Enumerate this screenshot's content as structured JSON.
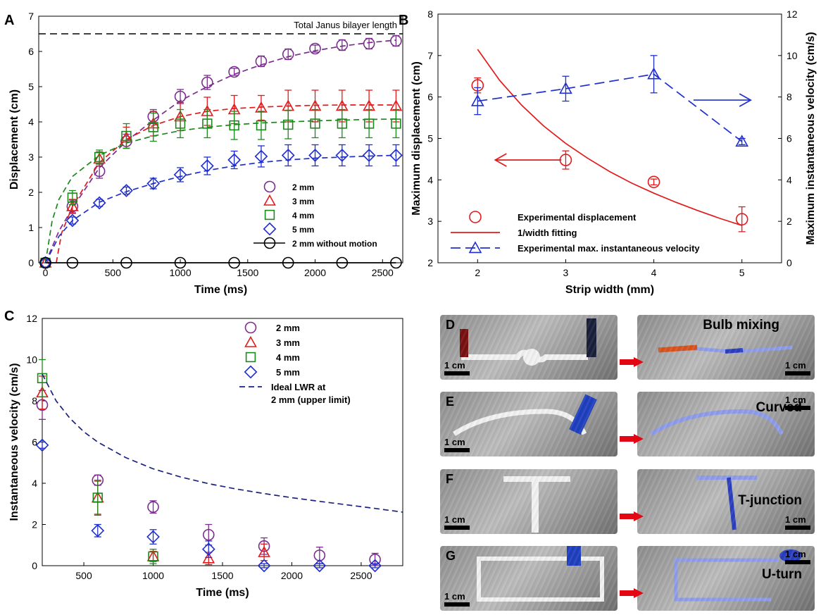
{
  "figure": {
    "panel_labels": {
      "a": "A",
      "b": "B",
      "c": "C"
    }
  },
  "chart_data": [
    {
      "type": "line",
      "panel": "A",
      "xlabel": "Time (ms)",
      "ylabel": "Displacement (cm)",
      "xlim": [
        -50,
        2650
      ],
      "ylim": [
        0,
        7
      ],
      "xticks": [
        0,
        500,
        1000,
        1500,
        2000,
        2500
      ],
      "yticks": [
        0,
        1,
        2,
        3,
        4,
        5,
        6,
        7
      ],
      "legend_position": "lower-right",
      "reference_line": {
        "y": 6.5,
        "label": "Total Janus bilayer length"
      },
      "series": [
        {
          "name": "2 mm",
          "marker": "circle",
          "color": "#7b2d8e",
          "fit": "dashed",
          "x": [
            0,
            200,
            400,
            600,
            800,
            1000,
            1200,
            1400,
            1600,
            1800,
            2000,
            2200,
            2400,
            2600
          ],
          "y": [
            0,
            1.6,
            2.6,
            3.45,
            4.15,
            4.72,
            5.12,
            5.42,
            5.72,
            5.92,
            6.08,
            6.18,
            6.22,
            6.3
          ],
          "err": [
            0,
            0.18,
            0.2,
            0.2,
            0.2,
            0.2,
            0.2,
            0.1,
            0.15,
            0.15,
            0.1,
            0.15,
            0.15,
            0.15
          ],
          "fit_x": [
            0,
            100,
            200,
            400,
            600,
            800,
            1000,
            1200,
            1400,
            1600,
            1800,
            2000,
            2200,
            2400,
            2600
          ],
          "fit_y": [
            0,
            0.9,
            1.55,
            2.7,
            3.45,
            4.05,
            4.6,
            5.0,
            5.35,
            5.62,
            5.85,
            6.02,
            6.15,
            6.25,
            6.32
          ]
        },
        {
          "name": "3 mm",
          "marker": "triangle",
          "color": "#e31a1c",
          "fit": "dashed",
          "x": [
            0,
            200,
            400,
            600,
            800,
            1000,
            1200,
            1400,
            1600,
            1800,
            2000,
            2200,
            2400,
            2600
          ],
          "y": [
            0,
            1.6,
            2.95,
            3.55,
            3.95,
            4.15,
            4.3,
            4.35,
            4.4,
            4.45,
            4.45,
            4.45,
            4.45,
            4.45
          ],
          "err": [
            0,
            0.2,
            0.2,
            0.3,
            0.35,
            0.4,
            0.4,
            0.4,
            0.35,
            0.45,
            0.45,
            0.45,
            0.45,
            0.45
          ],
          "fit_x": [
            80,
            120,
            200,
            400,
            600,
            800,
            1000,
            1200,
            1400,
            1600,
            1800,
            2000,
            2200,
            2400,
            2600
          ],
          "fit_y": [
            0,
            0.85,
            1.6,
            2.85,
            3.5,
            3.9,
            4.15,
            4.3,
            4.38,
            4.42,
            4.45,
            4.47,
            4.48,
            4.48,
            4.48
          ]
        },
        {
          "name": "4 mm",
          "marker": "square",
          "color": "#1a8a1a",
          "fit": "dashed",
          "x": [
            0,
            200,
            400,
            600,
            800,
            1000,
            1200,
            1400,
            1600,
            1800,
            2000,
            2200,
            2400,
            2600
          ],
          "y": [
            0,
            1.85,
            3.0,
            3.6,
            3.85,
            3.95,
            3.95,
            3.9,
            3.9,
            3.92,
            3.95,
            3.95,
            3.95,
            3.95
          ],
          "err": [
            0,
            0.2,
            0.2,
            0.35,
            0.4,
            0.4,
            0.4,
            0.4,
            0.4,
            0.4,
            0.4,
            0.4,
            0.4,
            0.4
          ],
          "fit_x": [
            0,
            50,
            100,
            200,
            400,
            600,
            800,
            1000,
            1200,
            1400,
            1600,
            1800,
            2000,
            2200,
            2400,
            2600
          ],
          "fit_y": [
            0,
            1.2,
            1.8,
            2.45,
            3.05,
            3.4,
            3.6,
            3.75,
            3.85,
            3.92,
            3.97,
            4.0,
            4.03,
            4.05,
            4.07,
            4.08
          ]
        },
        {
          "name": "5 mm",
          "marker": "diamond",
          "color": "#1f2fcf",
          "fit": "dashed",
          "x": [
            0,
            200,
            400,
            600,
            800,
            1000,
            1200,
            1400,
            1600,
            1800,
            2000,
            2200,
            2400,
            2600
          ],
          "y": [
            0,
            1.2,
            1.7,
            2.05,
            2.25,
            2.5,
            2.75,
            2.92,
            3.02,
            3.05,
            3.05,
            3.05,
            3.05,
            3.05
          ],
          "err": [
            0,
            0.1,
            0.1,
            0.1,
            0.15,
            0.2,
            0.25,
            0.25,
            0.3,
            0.3,
            0.3,
            0.3,
            0.3,
            0.3
          ],
          "fit_x": [
            0,
            100,
            200,
            400,
            600,
            800,
            1000,
            1200,
            1400,
            1600,
            1800,
            2000,
            2200,
            2400,
            2600
          ],
          "fit_y": [
            0,
            0.75,
            1.2,
            1.72,
            2.02,
            2.25,
            2.45,
            2.62,
            2.75,
            2.85,
            2.92,
            2.97,
            3.0,
            3.03,
            3.05
          ]
        },
        {
          "name": "2 mm without motion",
          "marker": "circle",
          "color": "#000000",
          "fit": "solid",
          "x": [
            0,
            200,
            600,
            1000,
            1400,
            1800,
            2200,
            2600
          ],
          "y": [
            0,
            0,
            0,
            0,
            0,
            0,
            0,
            0
          ],
          "err": [
            0,
            0,
            0,
            0,
            0,
            0,
            0,
            0
          ],
          "fit_x": [
            0,
            2600
          ],
          "fit_y": [
            0,
            0
          ]
        }
      ]
    },
    {
      "type": "line",
      "panel": "B",
      "xlabel": "Strip width (mm)",
      "ylabel": "Maximum displacement (cm)",
      "ylabel_right": "Maximum instantaneous velocity (cm/s)",
      "xlim": [
        1.55,
        5.45
      ],
      "ylim": [
        2,
        8
      ],
      "ylim_right": [
        0,
        12
      ],
      "xticks": [
        2,
        3,
        4,
        5
      ],
      "yticks": [
        2,
        3,
        4,
        5,
        6,
        7,
        8
      ],
      "yticks_right": [
        0,
        2,
        4,
        6,
        8,
        10,
        12
      ],
      "legend_position": "bottom-left",
      "series": [
        {
          "name": "Experimental displacement",
          "marker": "circle",
          "color": "#e31a1c",
          "axis": "left",
          "x": [
            2,
            3,
            4,
            5
          ],
          "y": [
            6.28,
            4.48,
            3.95,
            3.05
          ],
          "err": [
            0.18,
            0.22,
            0.07,
            0.3
          ]
        },
        {
          "name": "1/width fitting",
          "line": "solid",
          "color": "#e31a1c",
          "axis": "left",
          "x": [
            2,
            2.25,
            2.5,
            2.75,
            3,
            3.25,
            3.5,
            3.75,
            4,
            4.25,
            4.5,
            4.75,
            5
          ],
          "y": [
            7.15,
            6.4,
            5.8,
            5.3,
            4.88,
            4.52,
            4.2,
            3.92,
            3.68,
            3.46,
            3.26,
            3.07,
            2.9
          ]
        },
        {
          "name": "Experimental max. instantaneous velocity",
          "marker": "triangle",
          "line": "dashed",
          "color": "#1f2fcf",
          "axis": "right",
          "x": [
            2,
            3,
            4,
            5
          ],
          "y": [
            7.8,
            8.4,
            9.1,
            5.85
          ],
          "err": [
            0.65,
            0.6,
            0.9,
            0.15
          ]
        }
      ],
      "arrows": [
        {
          "direction": "left",
          "color": "#e31a1c",
          "x_from": 2.95,
          "x_to": 2.2,
          "y": 4.48,
          "axis": "left"
        },
        {
          "direction": "right",
          "color": "#1f2fcf",
          "x_from": 4.45,
          "x_to": 5.1,
          "y": 7.85,
          "axis": "right"
        }
      ]
    },
    {
      "type": "scatter",
      "panel": "C",
      "xlabel": "Time (ms)",
      "ylabel": "Instantaneous velocity (cm/s)",
      "xlim": [
        200,
        2800
      ],
      "ylim": [
        0,
        12
      ],
      "xticks": [
        500,
        1000,
        1500,
        2000,
        2500
      ],
      "yticks": [
        0,
        2,
        4,
        6,
        8,
        10,
        12
      ],
      "legend_position": "top-right",
      "series": [
        {
          "name": "2 mm",
          "marker": "circle",
          "color": "#7b2d8e",
          "x": [
            200,
            600,
            1000,
            1400,
            1800,
            2200,
            2600
          ],
          "y": [
            7.8,
            4.15,
            2.85,
            1.5,
            0.95,
            0.5,
            0.3
          ],
          "err": [
            0.7,
            0.25,
            0.3,
            0.5,
            0.4,
            0.4,
            0.3
          ]
        },
        {
          "name": "3 mm",
          "marker": "triangle",
          "color": "#e31a1c",
          "x": [
            200,
            600,
            1000,
            1400,
            1800
          ],
          "y": [
            8.4,
            3.3,
            0.45,
            0.35,
            0.65
          ],
          "err": [
            0.8,
            0.8,
            0.25,
            0.3,
            0.4
          ]
        },
        {
          "name": "4 mm",
          "marker": "square",
          "color": "#1a8a1a",
          "x": [
            200,
            600,
            1000
          ],
          "y": [
            9.1,
            3.3,
            0.45
          ],
          "err": [
            0.9,
            0.85,
            0.35
          ]
        },
        {
          "name": "5 mm",
          "marker": "diamond",
          "color": "#1f2fcf",
          "x": [
            200,
            600,
            1000,
            1400,
            1800,
            2200,
            2600
          ],
          "y": [
            5.85,
            1.7,
            1.4,
            0.8,
            0.0,
            0.0,
            0.0
          ],
          "err": [
            0.15,
            0.3,
            0.35,
            0.4,
            0.1,
            0.1,
            0.1
          ]
        },
        {
          "name": "Ideal LWR at 2 mm (upper limit)",
          "line": "dashed",
          "color": "#1a237e",
          "legend_lines": [
            "Ideal LWR at",
            "2 mm (upper limit)"
          ],
          "x": [
            200,
            300,
            400,
            500,
            600,
            800,
            1000,
            1200,
            1400,
            1600,
            1800,
            2000,
            2200,
            2400,
            2600,
            2800
          ],
          "y": [
            9.3,
            8.0,
            7.15,
            6.5,
            6.0,
            5.25,
            4.7,
            4.3,
            3.98,
            3.72,
            3.5,
            3.3,
            3.12,
            2.95,
            2.78,
            2.6
          ]
        }
      ]
    }
  ],
  "photos": [
    {
      "letter": "D",
      "scale": "1 cm",
      "caption": "",
      "variant": "D-before"
    },
    {
      "letter": "",
      "scale": "1 cm",
      "caption": "Bulb mixing",
      "variant": "D-after"
    },
    {
      "letter": "E",
      "scale": "1 cm",
      "caption": "",
      "variant": "E-before"
    },
    {
      "letter": "",
      "scale": "1 cm",
      "caption": "Curved",
      "variant": "E-after"
    },
    {
      "letter": "F",
      "scale": "1 cm",
      "caption": "",
      "variant": "F-before"
    },
    {
      "letter": "",
      "scale": "1 cm",
      "caption": "T-junction",
      "variant": "F-after"
    },
    {
      "letter": "G",
      "scale": "1 cm",
      "caption": "",
      "variant": "G-before"
    },
    {
      "letter": "",
      "scale": "1 cm",
      "caption": "U-turn",
      "variant": "G-after"
    }
  ],
  "photo_colors": {
    "strip": "#f2f2f2",
    "dye_red": "#d9531e",
    "dye_blue": "#2a3fbf",
    "light_blue": "#8f9dea"
  }
}
